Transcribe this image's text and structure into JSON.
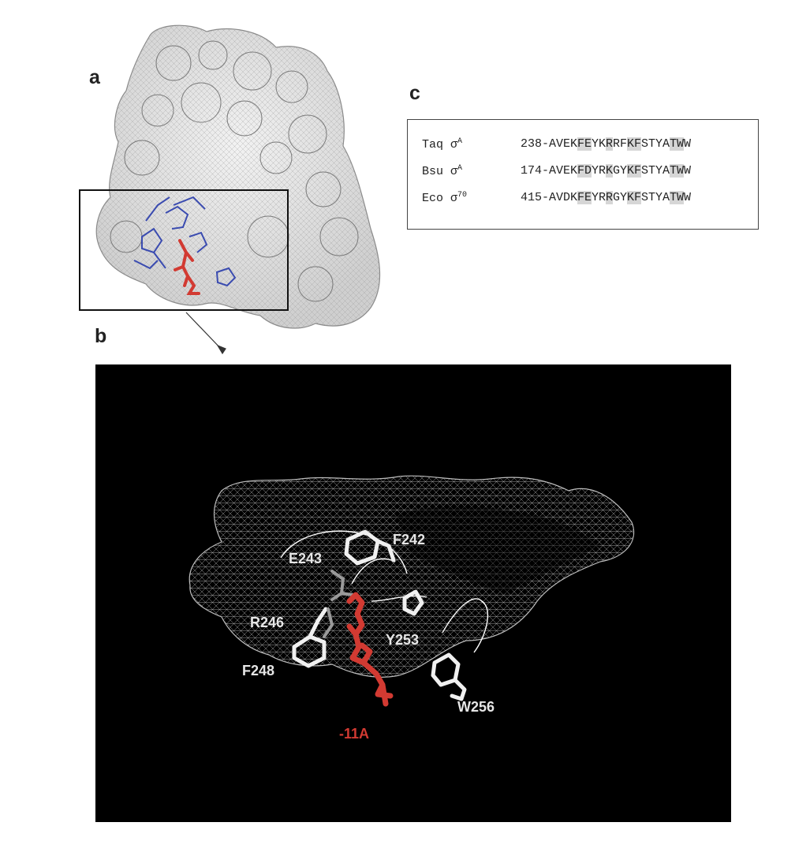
{
  "panels": {
    "a": "a",
    "b": "b",
    "c": "c"
  },
  "alignment": {
    "rows": [
      {
        "species": "Taq",
        "sigma": "σ",
        "superscript": "A",
        "sequence": "238-AVEKFEYKRRFKFSTYATWW"
      },
      {
        "species": "Bsu",
        "sigma": "σ",
        "superscript": "A",
        "sequence": "174-AVEKFDYRKGYKFSTYATWW"
      },
      {
        "species": "Eco",
        "sigma": "σ",
        "superscript": "70",
        "sequence": "415-AVDKFEYRRGYKFSTYATWW"
      }
    ]
  },
  "residue_labels": {
    "f242": "F242",
    "e243": "E243",
    "r246": "R246",
    "f248": "F248",
    "y253": "Y253",
    "w256": "W256",
    "n11a": "-11A"
  },
  "colors": {
    "background_b": "#000000",
    "nucleotide": "#d23a32",
    "residues_a": "#3a4bb0",
    "residues_b": "#ffffff",
    "mesh_a": "#bdbdbd",
    "mesh_b": "#ffffff",
    "highlight": "#d6d6d6"
  }
}
